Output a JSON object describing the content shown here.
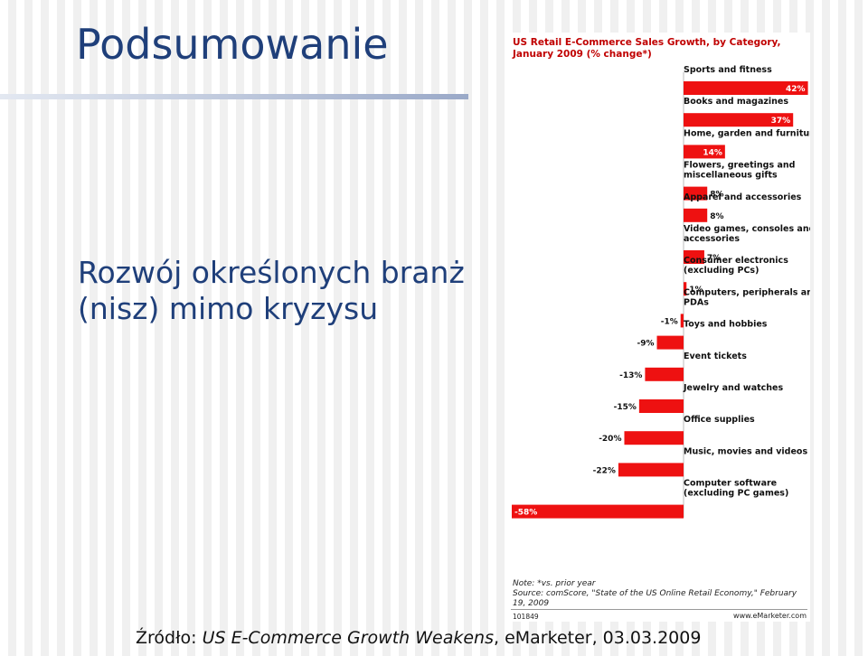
{
  "slide": {
    "title": "Podsumowanie",
    "subtitle": "Rozwój określonych branż (nisz) mimo kryzysu",
    "source_prefix": "Źródło: ",
    "source_title": "US E-Commerce Growth Weakens",
    "source_suffix": ", eMarketer, 03.03.2009"
  },
  "chart_data": {
    "type": "bar",
    "title": "US Retail E-Commerce Sales Growth, by Category, January 2009 (% change*)",
    "categories": [
      "Sports and fitness",
      "Books and magazines",
      "Home, garden and furniture",
      "Flowers, greetings and miscellaneous gifts",
      "Apparel and accessories",
      "Video games, consoles and accessories",
      "Consumer electronics (excluding PCs)",
      "Computers, peripherals and PDAs",
      "Toys and hobbies",
      "Event tickets",
      "Jewelry and watches",
      "Office supplies",
      "Music, movies and videos",
      "Computer software (excluding PC games)"
    ],
    "values": [
      42,
      37,
      14,
      8,
      8,
      7,
      1,
      -1,
      -9,
      -13,
      -15,
      -20,
      -22,
      -58
    ],
    "value_labels": [
      "42%",
      "37%",
      "14%",
      "8%",
      "8%",
      "7%",
      "1%",
      "-1%",
      "-9%",
      "-13%",
      "-15%",
      "-20%",
      "-22%",
      "-58%"
    ],
    "xlim": [
      -58,
      42
    ],
    "bar_color": "#ee1111",
    "grid": false,
    "note": "Note: *vs. prior year",
    "source": "Source: comScore, \"State of the US Online Retail Economy,\" February 19, 2009",
    "chart_id": "101849",
    "brand": "www.eMarketer.com"
  },
  "colors": {
    "title": "#1f3f7a",
    "chart_title": "#c00000",
    "bar": "#ee1111"
  }
}
